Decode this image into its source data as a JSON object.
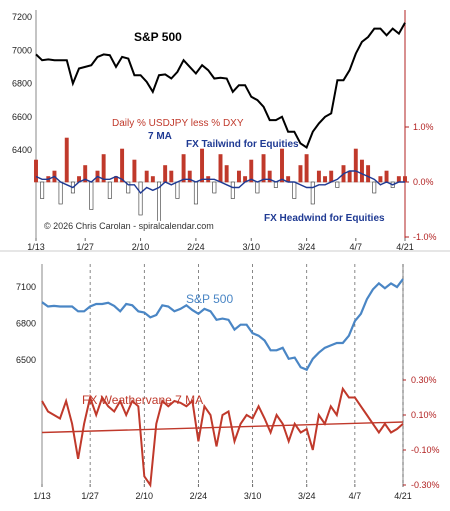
{
  "chart_data": [
    {
      "type": "line",
      "title": "S&P 500",
      "annotations": {
        "subtitle_red": "Daily % USDJPY less % DXY",
        "subtitle_blue": "7 MA",
        "tailwind": "FX Tailwind for Equities",
        "headwind": "FX Headwind for Equities",
        "copyright": "© 2026 Chris Carolan - spiralcalendar.com"
      },
      "x_ticks": [
        "1/13",
        "1/27",
        "2/10",
        "2/24",
        "3/10",
        "3/24",
        "4/7",
        "4/21"
      ],
      "y_left_ticks": [
        "6400",
        "6600",
        "6800",
        "7000",
        "7200"
      ],
      "y_left_lim": [
        6400,
        7200
      ],
      "y_right_ticks": [
        "1.0%",
        "0.0%",
        "-1.0%"
      ],
      "y_right_lim": [
        -1.0,
        1.0
      ],
      "series": [
        {
          "name": "S&P 500",
          "color": "#000000",
          "values": [
            6975,
            6940,
            6945,
            6940,
            6940,
            6940,
            6800,
            6890,
            6900,
            6910,
            6960,
            6975,
            6970,
            6900,
            6960,
            6950,
            6850,
            6850,
            6810,
            6750,
            6850,
            6855,
            6830,
            6870,
            6940,
            6900,
            6860,
            6910,
            6880,
            6830,
            6835,
            6830,
            6750,
            6790,
            6790,
            6720,
            6700,
            6660,
            6580,
            6580,
            6600,
            6510,
            6510,
            6440,
            6415,
            6510,
            6560,
            6600,
            6620,
            6820,
            6820,
            6880,
            6980,
            7050,
            7080,
            7130,
            7130,
            7090,
            7130,
            7100,
            7165
          ]
        },
        {
          "name": "Daily % USDJPY less % DXY",
          "color": "#c0392b",
          "kind": "bar",
          "values": [
            0.4,
            -0.3,
            0.1,
            0.2,
            -0.4,
            0.8,
            -0.2,
            0.1,
            0.3,
            -0.5,
            0.2,
            0.5,
            -0.3,
            0.1,
            0.6,
            -0.2,
            0.4,
            -0.6,
            0.2,
            0.1,
            -0.8,
            0.3,
            0.2,
            -0.3,
            0.5,
            0.2,
            -0.4,
            0.6,
            0.1,
            -0.2,
            0.5,
            0.3,
            -0.3,
            0.2,
            0.1,
            0.4,
            -0.2,
            0.5,
            0.2,
            -0.1,
            0.6,
            0.1,
            -0.3,
            0.3,
            0.5,
            -0.4,
            0.2,
            0.1,
            0.2,
            -0.1,
            0.3,
            0.2,
            0.6,
            0.4,
            0.3,
            -0.2,
            0.1,
            0.2,
            -0.1,
            0.1,
            0.1
          ]
        },
        {
          "name": "7 MA",
          "color": "#1f3a93",
          "values": [
            0.1,
            0.05,
            0.05,
            0.1,
            0.0,
            -0.05,
            -0.1,
            0.0,
            0.05,
            0.0,
            0.1,
            0.05,
            0.05,
            0.1,
            0.05,
            -0.05,
            -0.05,
            -0.2,
            -0.1,
            -0.15,
            -0.1,
            0.0,
            -0.05,
            0.0,
            0.05,
            0.05,
            0.0,
            0.05,
            0.05,
            0.05,
            0.0,
            -0.05,
            -0.1,
            -0.1,
            0.0,
            0.05,
            0.0,
            0.05,
            0.05,
            0.0,
            0.05,
            0.0,
            0.0,
            -0.05,
            -0.1,
            -0.1,
            -0.05,
            -0.05,
            0.0,
            0.05,
            0.15,
            0.2,
            0.2,
            0.15,
            0.1,
            0.05,
            -0.05,
            0.0,
            -0.05,
            0.0,
            0.0
          ]
        }
      ]
    },
    {
      "type": "line",
      "x_ticks": [
        "1/13",
        "1/27",
        "2/10",
        "2/24",
        "3/10",
        "3/24",
        "4/7",
        "4/21"
      ],
      "y_left_ticks": [
        "6500",
        "6800",
        "7100"
      ],
      "y_left_lim": [
        6200,
        7200
      ],
      "y_right_ticks": [
        "0.30%",
        "0.10%",
        "-0.10%",
        "-0.30%"
      ],
      "y_right_lim": [
        -0.3,
        0.4
      ],
      "series": [
        {
          "name": "S&P 500",
          "color": "#4a86c5",
          "values": [
            6975,
            6940,
            6945,
            6940,
            6940,
            6940,
            6900,
            6900,
            6940,
            6960,
            6960,
            6970,
            6945,
            6900,
            6960,
            6950,
            6900,
            6890,
            6850,
            6870,
            6950,
            6940,
            6900,
            6920,
            6950,
            6910,
            6880,
            6920,
            6900,
            6830,
            6840,
            6830,
            6750,
            6790,
            6790,
            6720,
            6700,
            6660,
            6580,
            6580,
            6600,
            6510,
            6520,
            6440,
            6420,
            6510,
            6560,
            6600,
            6620,
            6640,
            6640,
            6700,
            6820,
            6880,
            7000,
            7080,
            7130,
            7090,
            7130,
            7100,
            7165
          ]
        },
        {
          "name": "FX Weathervane 7 MA",
          "color": "#c0392b",
          "values": [
            0.18,
            0.12,
            0.1,
            0.08,
            0.18,
            0.05,
            -0.15,
            0.05,
            0.2,
            0.1,
            0.2,
            0.15,
            0.12,
            0.18,
            0.1,
            0.18,
            0.15,
            -0.25,
            -0.3,
            0.05,
            0.18,
            0.15,
            0.18,
            0.17,
            0.15,
            0.18,
            -0.05,
            0.15,
            0.1,
            -0.08,
            0.1,
            0.12,
            -0.05,
            0.05,
            0.1,
            0.08,
            0.15,
            0.08,
            0.0,
            0.1,
            0.05,
            -0.05,
            0.05,
            0.0,
            0.02,
            -0.1,
            0.1,
            0.05,
            0.15,
            0.1,
            0.25,
            0.2,
            0.2,
            0.15,
            0.1,
            0.05,
            0.0,
            0.05,
            0.0,
            0.02,
            0.05
          ]
        },
        {
          "name": "Trend",
          "color": "#c0392b",
          "values": [
            0.0,
            0.06
          ]
        }
      ],
      "labels": {
        "sp": "S&P 500",
        "weathervane": "FX Weathervane 7 MA"
      }
    }
  ]
}
